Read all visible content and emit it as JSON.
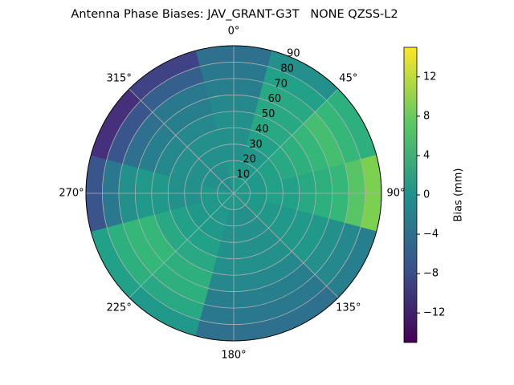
{
  "chart_data": {
    "type": "polar-heatmap",
    "title": "Antenna Phase Biases: JAV_GRANT-G3T   NONE QZSS-L2",
    "theta": [
      0,
      30,
      60,
      90,
      120,
      150,
      180,
      210,
      240,
      270,
      300,
      330
    ],
    "r": [
      5,
      15,
      25,
      35,
      45,
      55,
      65,
      75,
      85
    ],
    "values": [
      [
        1,
        1,
        0,
        0,
        0,
        -1,
        -2,
        -3,
        -4
      ],
      [
        1,
        1,
        1,
        2,
        3,
        3,
        3,
        2,
        0
      ],
      [
        1,
        1,
        2,
        3,
        4,
        5,
        6,
        5,
        4
      ],
      [
        1,
        1,
        2,
        2,
        3,
        4,
        5,
        7,
        9
      ],
      [
        1,
        1,
        1,
        1,
        1,
        1,
        0,
        -1,
        -2
      ],
      [
        1,
        0,
        0,
        0,
        0,
        -1,
        -2,
        -3,
        -4
      ],
      [
        1,
        0,
        0,
        0,
        0,
        -1,
        -2,
        -3,
        -4
      ],
      [
        1,
        1,
        1,
        2,
        3,
        4,
        4,
        3,
        1
      ],
      [
        1,
        1,
        1,
        2,
        3,
        5,
        5,
        4,
        2
      ],
      [
        1,
        1,
        0,
        0,
        1,
        1,
        0,
        -3,
        -7
      ],
      [
        0,
        0,
        0,
        0,
        -1,
        -2,
        -4,
        -7,
        -11
      ],
      [
        0,
        0,
        0,
        0,
        -1,
        -2,
        -3,
        -6,
        -9
      ]
    ],
    "rlim": [
      0,
      90
    ],
    "rticks": [
      10,
      20,
      30,
      40,
      50,
      60,
      70,
      80,
      90
    ],
    "thetaticks": [
      {
        "value": 0,
        "label": "0°"
      },
      {
        "value": 45,
        "label": "45°"
      },
      {
        "value": 90,
        "label": "90°"
      },
      {
        "value": 135,
        "label": "135°"
      },
      {
        "value": 180,
        "label": "180°"
      },
      {
        "value": 225,
        "label": "225°"
      },
      {
        "value": 270,
        "label": "270°"
      },
      {
        "value": 315,
        "label": "315°"
      }
    ],
    "colormap": "viridis",
    "clim": [
      -15,
      15
    ],
    "colorbar_label": "Bias (mm)",
    "colorbar_ticks": [
      {
        "value": -12,
        "label": "−12"
      },
      {
        "value": -8,
        "label": "−8"
      },
      {
        "value": -4,
        "label": "−4"
      },
      {
        "value": 0,
        "label": "0"
      },
      {
        "value": 4,
        "label": "4"
      },
      {
        "value": 8,
        "label": "8"
      },
      {
        "value": 12,
        "label": "12"
      }
    ],
    "grid": true
  }
}
